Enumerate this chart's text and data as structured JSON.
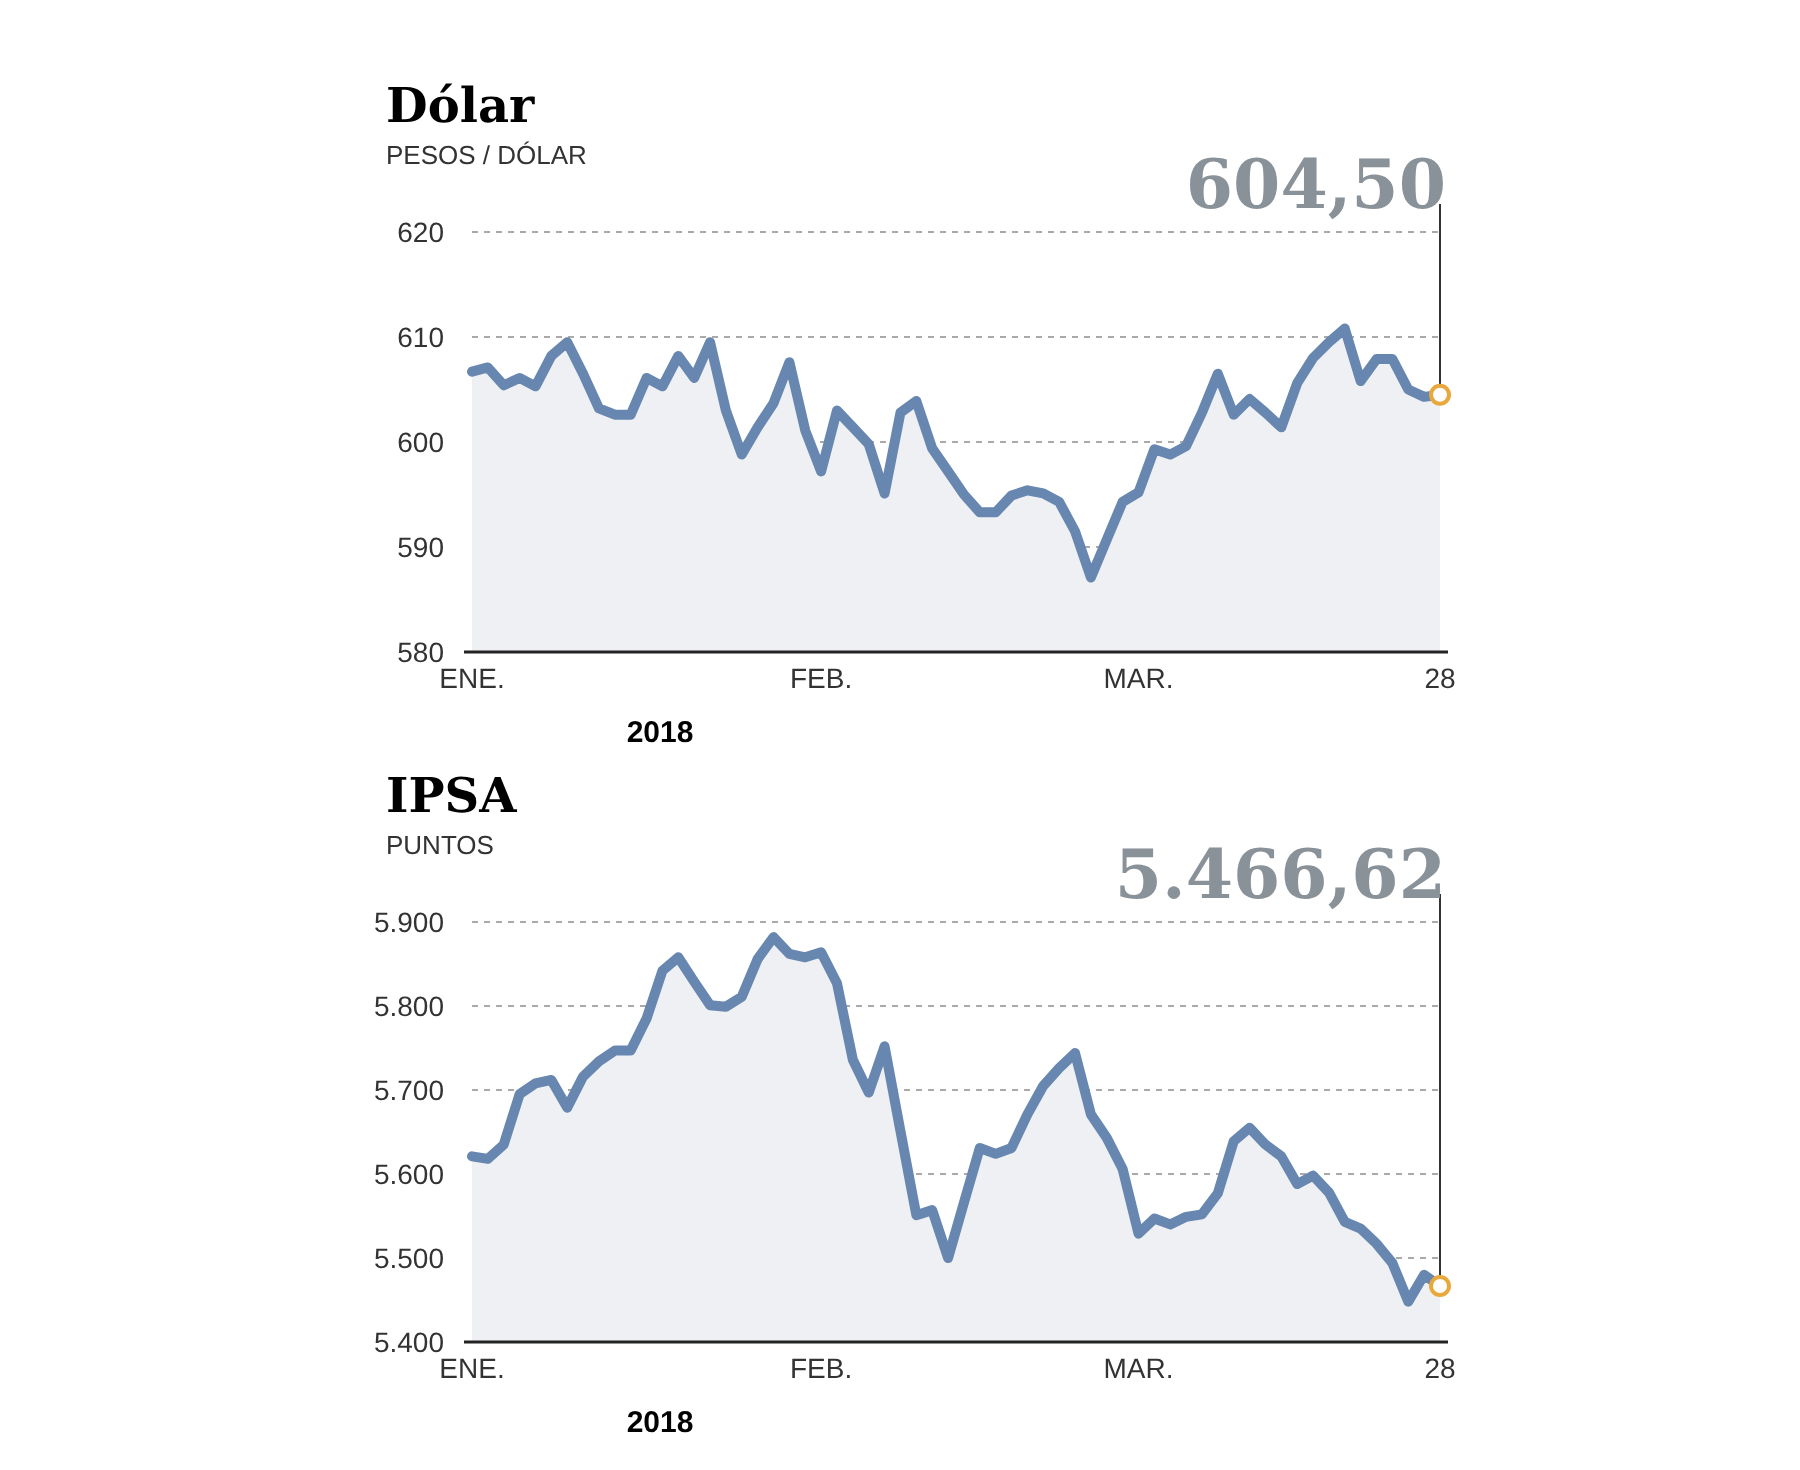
{
  "chart_data": [
    {
      "type": "area",
      "title": "Dólar",
      "subtitle": "PESOS / DÓLAR",
      "annotations": [
        {
          "text": "604,50",
          "x": "28",
          "y": 604.5
        },
        "2018"
      ],
      "categories": [
        "ENE.",
        null,
        null,
        null,
        null,
        null,
        null,
        null,
        null,
        null,
        null,
        null,
        null,
        null,
        null,
        null,
        null,
        null,
        null,
        null,
        null,
        null,
        "FEB.",
        null,
        null,
        null,
        null,
        null,
        null,
        null,
        null,
        null,
        null,
        null,
        null,
        null,
        null,
        null,
        null,
        null,
        null,
        null,
        "MAR.",
        null,
        null,
        null,
        null,
        null,
        null,
        null,
        null,
        null,
        null,
        null,
        null,
        null,
        null,
        null,
        null,
        null,
        null,
        "28"
      ],
      "series": [
        {
          "color": "#6787b1",
          "values": [
            606.7,
            607.1,
            605.4,
            606.1,
            605.3,
            608.2,
            609.5,
            606.5,
            603.2,
            602.6,
            602.6,
            606.1,
            605.3,
            608.2,
            606.1,
            609.5,
            603.0,
            598.8,
            601.4,
            603.7,
            607.6,
            601.1,
            597.2,
            603.0,
            601.4,
            599.8,
            595.1,
            602.8,
            603.9,
            599.4,
            597.2,
            595.0,
            593.3,
            593.3,
            594.9,
            595.4,
            595.1,
            594.3,
            591.5,
            587.1,
            590.7,
            594.3,
            595.2,
            599.3,
            598.8,
            599.6,
            602.8,
            606.5,
            602.6,
            604.1,
            602.8,
            601.4,
            605.6,
            608.0,
            609.5,
            610.8,
            605.8,
            607.9,
            607.9,
            605.0,
            604.3,
            604.5
          ]
        }
      ],
      "ylim": [
        580,
        620
      ],
      "yticks": [
        580,
        590,
        600,
        610,
        620
      ],
      "grid": "y"
    },
    {
      "type": "area",
      "title": "IPSA",
      "subtitle": "PUNTOS",
      "annotations": [
        "5.466,62",
        "2018"
      ],
      "categories": [
        "ENE.",
        null,
        null,
        null,
        null,
        null,
        null,
        null,
        null,
        null,
        null,
        null,
        null,
        null,
        null,
        null,
        null,
        null,
        null,
        null,
        null,
        null,
        "FEB.",
        null,
        null,
        null,
        null,
        null,
        null,
        null,
        null,
        null,
        null,
        null,
        null,
        null,
        null,
        null,
        null,
        null,
        null,
        null,
        "MAR.",
        null,
        null,
        null,
        null,
        null,
        null,
        null,
        null,
        null,
        null,
        null,
        null,
        null,
        null,
        null,
        null,
        null,
        null,
        "28"
      ],
      "series": [
        {
          "color": "#6787b1",
          "values": [
            5621,
            5618,
            5635,
            5695,
            5708,
            5712,
            5679,
            5716,
            5734,
            5747,
            5747,
            5785,
            5842,
            5858,
            5829,
            5801,
            5799,
            5811,
            5856,
            5882,
            5862,
            5858,
            5864,
            5827,
            5736,
            5697,
            5752,
            5651,
            5551,
            5557,
            5500,
            5566,
            5631,
            5624,
            5631,
            5671,
            5705,
            5726,
            5744,
            5671,
            5643,
            5606,
            5529,
            5547,
            5540,
            5549,
            5552,
            5577,
            5639,
            5655,
            5635,
            5621,
            5588,
            5598,
            5578,
            5543,
            5535,
            5517,
            5494,
            5448,
            5480,
            5466.62
          ]
        }
      ],
      "ylim": [
        5400,
        5900
      ],
      "yticks": [
        {
          "value": 5400,
          "label": "5.400"
        },
        {
          "value": 5500,
          "label": "5.500"
        },
        {
          "value": 5600,
          "label": "5.600"
        },
        {
          "value": 5700,
          "label": "5.700"
        },
        {
          "value": 5800,
          "label": "5.800"
        },
        {
          "value": 5900,
          "label": "5.900"
        }
      ],
      "grid": "y"
    }
  ]
}
